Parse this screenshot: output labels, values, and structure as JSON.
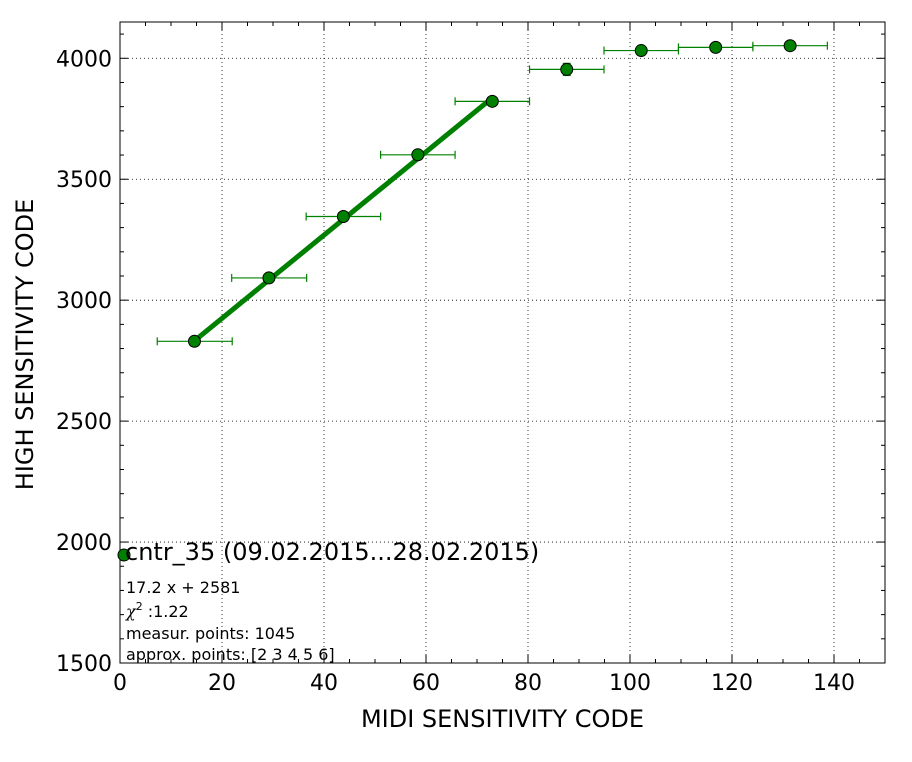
{
  "chart_data": {
    "type": "scatter",
    "title": "",
    "xlabel": "MIDI SENSITIVITY CODE",
    "ylabel": "HIGH SENSITIVITY CODE",
    "xlim": [
      0,
      150
    ],
    "ylim": [
      1500,
      4150
    ],
    "xticks": [
      0,
      20,
      40,
      60,
      80,
      100,
      120,
      140
    ],
    "yticks": [
      1500,
      2000,
      2500,
      3000,
      3500,
      4000
    ],
    "xtick_labels": [
      "0",
      "20",
      "40",
      "60",
      "80",
      "100",
      "120",
      "140"
    ],
    "ytick_labels": [
      "1500",
      "2000",
      "2500",
      "3000",
      "3500",
      "4000"
    ],
    "grid": true,
    "colors": {
      "series": "#008000",
      "marker_edge": "#000000"
    },
    "series": [
      {
        "name": "cntr_35 (09.02.2015...28.02.2015)",
        "points": [
          {
            "x": 14.6,
            "y": 2830,
            "xerr_low": 7.3,
            "xerr_high": 22.0,
            "yerr": 8
          },
          {
            "x": 29.2,
            "y": 3092,
            "xerr_low": 21.9,
            "xerr_high": 36.6,
            "yerr": 10
          },
          {
            "x": 43.8,
            "y": 3346,
            "xerr_low": 36.5,
            "xerr_high": 51.1,
            "yerr": 12
          },
          {
            "x": 58.4,
            "y": 3601,
            "xerr_low": 51.1,
            "xerr_high": 65.7,
            "yerr": 15
          },
          {
            "x": 73.0,
            "y": 3822,
            "xerr_low": 65.7,
            "xerr_high": 80.3,
            "yerr": 15
          },
          {
            "x": 87.6,
            "y": 3954,
            "xerr_low": 80.3,
            "xerr_high": 94.9,
            "yerr": 25
          },
          {
            "x": 102.2,
            "y": 4032,
            "xerr_low": 94.9,
            "xerr_high": 109.5,
            "yerr": 5
          },
          {
            "x": 116.8,
            "y": 4045,
            "xerr_low": 109.5,
            "xerr_high": 124.1,
            "yerr": 5
          },
          {
            "x": 131.4,
            "y": 4052,
            "xerr_low": 124.1,
            "xerr_high": 138.7,
            "yerr": 5
          }
        ]
      }
    ],
    "fit": {
      "slope": 17.2,
      "intercept": 2581,
      "x_range": [
        14.6,
        73.0
      ]
    },
    "legend": {
      "title": "cntr_35 (09.02.2015...28.02.2015)",
      "lines": [
        "17.2 x + 2581",
        ":1.22",
        "measur. points: 1045",
        "approx. points: [2 3 4 5 6]"
      ],
      "chi_symbol": "χ",
      "chi_power": "2"
    }
  }
}
